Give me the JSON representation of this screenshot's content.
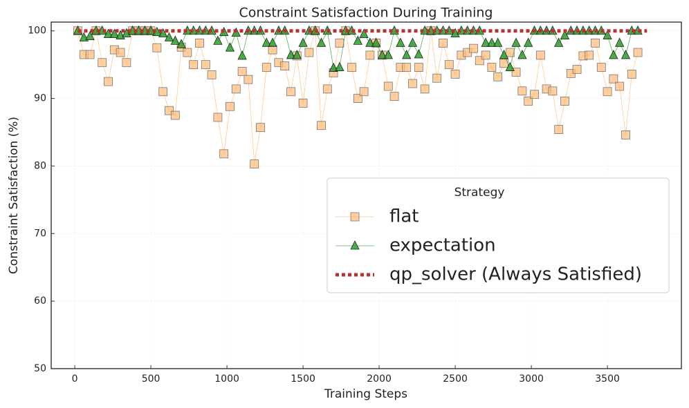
{
  "chart_data": {
    "type": "line",
    "title": "Constraint Satisfaction During Training",
    "xlabel": "Training Steps",
    "ylabel": "Constraint Satisfaction (%)",
    "legend_title": "Strategy",
    "legend_loc": "center right",
    "grid": true,
    "xlim": [
      -155,
      3986
    ],
    "ylim": [
      50,
      101.3
    ],
    "xticks": [
      0,
      500,
      1000,
      1500,
      2000,
      2500,
      3000,
      3500
    ],
    "yticks": [
      50,
      60,
      70,
      80,
      90,
      100
    ],
    "series": [
      {
        "name": "flat",
        "color": "#ffbb78",
        "marker": "square",
        "x": [
          20,
          60,
          100,
          140,
          180,
          220,
          260,
          300,
          340,
          380,
          420,
          460,
          500,
          540,
          580,
          620,
          660,
          700,
          740,
          780,
          820,
          860,
          900,
          940,
          980,
          1020,
          1060,
          1100,
          1140,
          1180,
          1220,
          1260,
          1300,
          1340,
          1380,
          1420,
          1460,
          1500,
          1540,
          1580,
          1620,
          1660,
          1700,
          1740,
          1780,
          1820,
          1860,
          1900,
          1940,
          1980,
          2020,
          2060,
          2100,
          2140,
          2180,
          2220,
          2260,
          2300,
          2340,
          2380,
          2420,
          2460,
          2500,
          2540,
          2580,
          2620,
          2660,
          2700,
          2740,
          2780,
          2820,
          2860,
          2900,
          2940,
          2980,
          3020,
          3060,
          3100,
          3140,
          3180,
          3220,
          3260,
          3300,
          3340,
          3380,
          3420,
          3460,
          3500,
          3540,
          3580,
          3620,
          3660,
          3700
        ],
        "values": [
          100,
          96.5,
          96.5,
          100,
          95.3,
          92.5,
          97.2,
          96.8,
          95.3,
          100,
          100,
          100,
          100,
          97.5,
          91,
          88.2,
          87.5,
          97.6,
          96.8,
          95,
          98.2,
          95,
          93.5,
          87.2,
          81.8,
          88.8,
          91.4,
          94,
          92.8,
          80.3,
          85.7,
          94.6,
          97.2,
          95.3,
          94.8,
          91,
          96.3,
          89.3,
          96.8,
          100,
          86,
          91.4,
          93.8,
          98.2,
          100,
          94.6,
          90,
          91,
          96.4,
          98.2,
          96.4,
          91.8,
          90.3,
          94.6,
          94.6,
          92.2,
          94.6,
          91.4,
          100,
          93,
          98.2,
          95,
          93.6,
          96.4,
          96.8,
          97.4,
          95.6,
          96.4,
          94.6,
          93.2,
          95.2,
          96.8,
          93.9,
          91.1,
          89.6,
          90.6,
          96.4,
          91.4,
          91.1,
          85.4,
          89.6,
          93.7,
          94.3,
          96.3,
          96.4,
          98.2,
          94.6,
          91,
          92.9,
          91.8,
          84.6,
          93.6,
          96.8
        ]
      },
      {
        "name": "expectation",
        "color": "#2ca02c",
        "marker": "triangle",
        "x": [
          20,
          60,
          100,
          140,
          180,
          220,
          260,
          300,
          340,
          380,
          420,
          460,
          500,
          540,
          580,
          620,
          660,
          700,
          740,
          780,
          820,
          860,
          900,
          940,
          980,
          1020,
          1060,
          1100,
          1140,
          1180,
          1220,
          1260,
          1300,
          1340,
          1380,
          1420,
          1460,
          1500,
          1540,
          1580,
          1620,
          1660,
          1700,
          1740,
          1780,
          1820,
          1860,
          1900,
          1940,
          1980,
          2020,
          2060,
          2100,
          2140,
          2180,
          2220,
          2260,
          2300,
          2340,
          2380,
          2420,
          2460,
          2500,
          2540,
          2580,
          2620,
          2660,
          2700,
          2740,
          2780,
          2820,
          2860,
          2900,
          2940,
          2980,
          3020,
          3060,
          3100,
          3140,
          3180,
          3220,
          3260,
          3300,
          3340,
          3380,
          3420,
          3460,
          3500,
          3540,
          3580,
          3620,
          3660,
          3700
        ],
        "values": [
          100,
          99,
          99.2,
          100,
          100,
          99.5,
          99.5,
          99.3,
          99.6,
          100,
          100,
          100,
          100,
          99.8,
          99.6,
          99,
          98.5,
          98,
          100,
          100,
          100,
          100,
          100,
          98.5,
          99.8,
          97.5,
          99.7,
          96.3,
          100,
          100,
          100,
          98.2,
          98.2,
          100,
          100,
          96.4,
          96.4,
          98.2,
          100,
          100,
          98.2,
          100,
          94.5,
          94.6,
          100,
          100,
          98.5,
          99.5,
          98.2,
          98.2,
          96.4,
          96.4,
          100,
          98.2,
          96.4,
          98.2,
          96.5,
          100,
          100,
          100,
          100,
          100,
          99.6,
          100,
          100,
          100,
          100,
          98.2,
          98.2,
          98.2,
          96.4,
          94.6,
          98.2,
          96.4,
          98.2,
          100,
          100,
          100,
          100,
          98.2,
          99.3,
          100,
          100,
          100,
          100,
          100,
          100,
          99.3,
          96.4,
          98.2,
          96.4,
          100,
          100
        ]
      },
      {
        "name": "qp_solver (Always Satisfied)",
        "color": "#b83232",
        "marker": "none",
        "dashed": true,
        "x": [
          20,
          3760
        ],
        "values": [
          100,
          100
        ]
      }
    ]
  }
}
